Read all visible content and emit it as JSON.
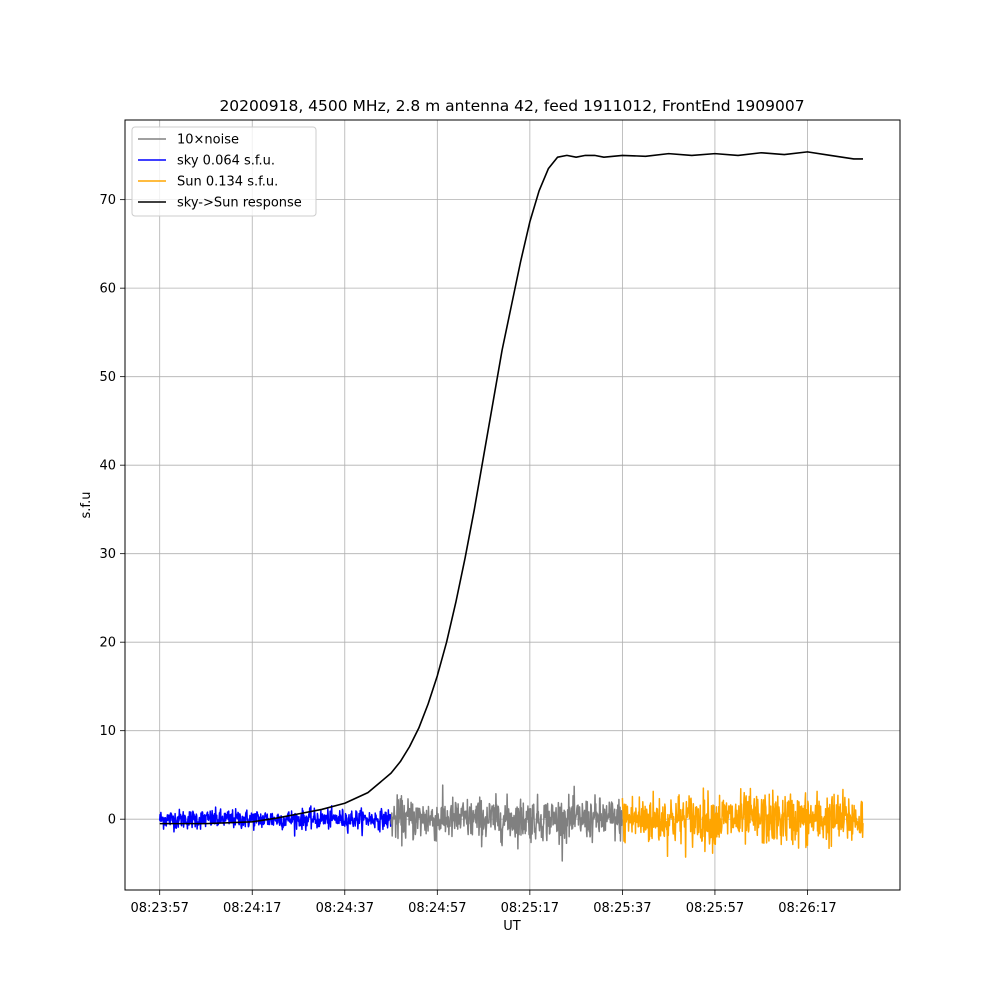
{
  "chart_data": {
    "type": "line",
    "title": "20200918, 4500 MHz, 2.8 m antenna 42, feed 1911012, FrontEnd 1909007",
    "xlabel": "UT",
    "ylabel": "s.f.u",
    "x_ticks": [
      "08:23:57",
      "08:24:17",
      "08:24:37",
      "08:24:57",
      "08:25:17",
      "08:25:37",
      "08:25:57",
      "08:26:17"
    ],
    "x_tick_seconds": [
      0,
      20,
      40,
      60,
      80,
      100,
      120,
      140
    ],
    "y_ticks": [
      0,
      10,
      20,
      30,
      40,
      50,
      60,
      70
    ],
    "xlim_seconds": [
      -7.5,
      160
    ],
    "ylim": [
      -8,
      79
    ],
    "grid": true,
    "legend_position": "top-left",
    "legend": [
      {
        "label": "10×noise",
        "color": "#808080"
      },
      {
        "label": "sky 0.064 s.f.u.",
        "color": "#0000ff"
      },
      {
        "label": "Sun 0.134 s.f.u.",
        "color": "#ffa500"
      },
      {
        "label": "sky->Sun response",
        "color": "#000000"
      }
    ],
    "series": [
      {
        "name": "sky->Sun response",
        "color": "#000000",
        "x_seconds": [
          0,
          10,
          20,
          25,
          30,
          35,
          40,
          45,
          50,
          52,
          54,
          56,
          58,
          60,
          62,
          64,
          66,
          68,
          70,
          72,
          74,
          76,
          78,
          80,
          82,
          84,
          86,
          88,
          90,
          92,
          94,
          96,
          98,
          100,
          105,
          110,
          115,
          120,
          125,
          130,
          135,
          140,
          145,
          150,
          152
        ],
        "values": [
          -0.5,
          -0.5,
          -0.3,
          0.1,
          0.6,
          1.1,
          1.8,
          3.0,
          5.2,
          6.5,
          8.2,
          10.3,
          13.0,
          16.2,
          20.0,
          24.5,
          29.5,
          35.0,
          41.0,
          47.0,
          53.0,
          58.0,
          63.0,
          67.5,
          71.0,
          73.5,
          74.8,
          75.0,
          74.8,
          75.0,
          75.0,
          74.8,
          74.9,
          75.0,
          74.9,
          75.2,
          75.0,
          75.2,
          75.0,
          75.3,
          75.1,
          75.4,
          75.0,
          74.6,
          74.6
        ]
      },
      {
        "name": "sky 0.064 s.f.u.",
        "color": "#0000ff",
        "x_range_seconds": [
          0,
          50
        ],
        "noise_amplitude": 1.3,
        "baseline": 0
      },
      {
        "name": "10×noise",
        "color": "#808080",
        "x_range_seconds": [
          50,
          100
        ],
        "noise_amplitude": 2.8,
        "baseline": 0
      },
      {
        "name": "Sun 0.134 s.f.u.",
        "color": "#ffa500",
        "x_range_seconds": [
          100,
          152
        ],
        "noise_amplitude": 3.5,
        "baseline": 0
      }
    ]
  }
}
